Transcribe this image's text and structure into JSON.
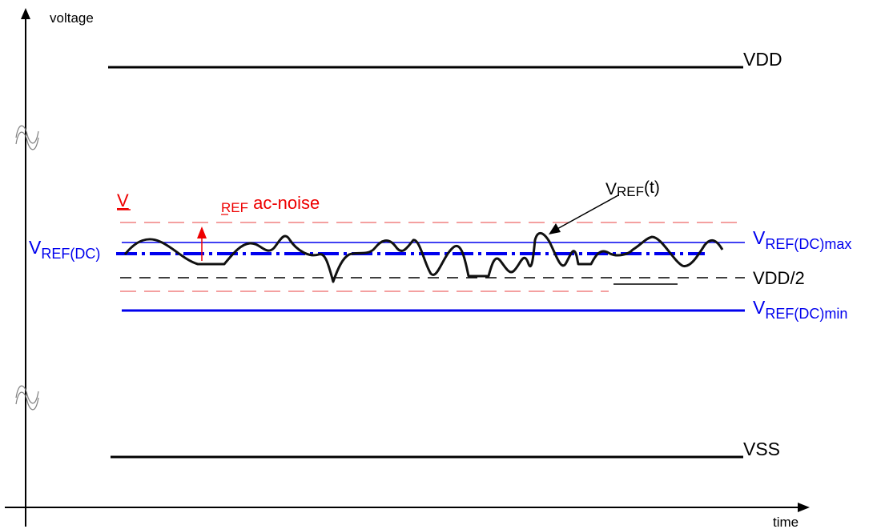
{
  "axes": {
    "y_label": "voltage",
    "x_label": "time"
  },
  "labels": {
    "vdd": "VDD",
    "vss": "VSS",
    "vdd_half": "VDD/2",
    "vref_dc": {
      "base": "V",
      "sub": "REF(DC)"
    },
    "vref_dc_max": {
      "base": "V",
      "sub": "REF(DC)max"
    },
    "vref_dc_min": {
      "base": "V",
      "sub": "REF(DC)min"
    },
    "vref_t": {
      "base": "V",
      "sub": "REF",
      "suffix": "(t)"
    },
    "ac_noise": {
      "base": "V",
      "sub": "REF",
      "suffix": " ac-noise"
    }
  },
  "colors": {
    "black": "#000000",
    "blue": "#0000ee",
    "red": "#ee0000",
    "dash_red": "#f08080",
    "grey": "#808080"
  },
  "icons": {
    "axis_break": "wavy-tilde-break-icon"
  }
}
